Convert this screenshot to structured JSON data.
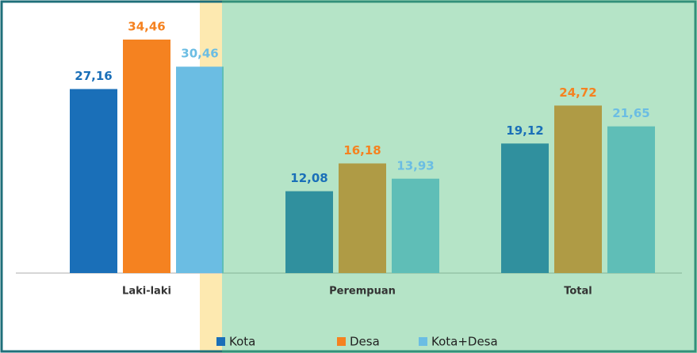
{
  "chart_data": {
    "type": "bar",
    "categories": [
      "Laki-laki",
      "Perempuan",
      "Total"
    ],
    "series": [
      {
        "name": "Kota",
        "color": "#1a6fb8",
        "values": [
          27.16,
          12.08,
          19.12
        ],
        "value_labels": [
          "27,16",
          "12,08",
          "19,12"
        ]
      },
      {
        "name": "Desa",
        "color": "#f58220",
        "values": [
          34.46,
          16.18,
          24.72
        ],
        "value_labels": [
          "34,46",
          "16,18",
          "24,72"
        ]
      },
      {
        "name": "Kota+Desa",
        "color": "#6bbde3",
        "values": [
          30.46,
          13.93,
          21.65
        ],
        "value_labels": [
          "30,46",
          "13,93",
          "21,65"
        ]
      }
    ],
    "legend": "bottom"
  }
}
